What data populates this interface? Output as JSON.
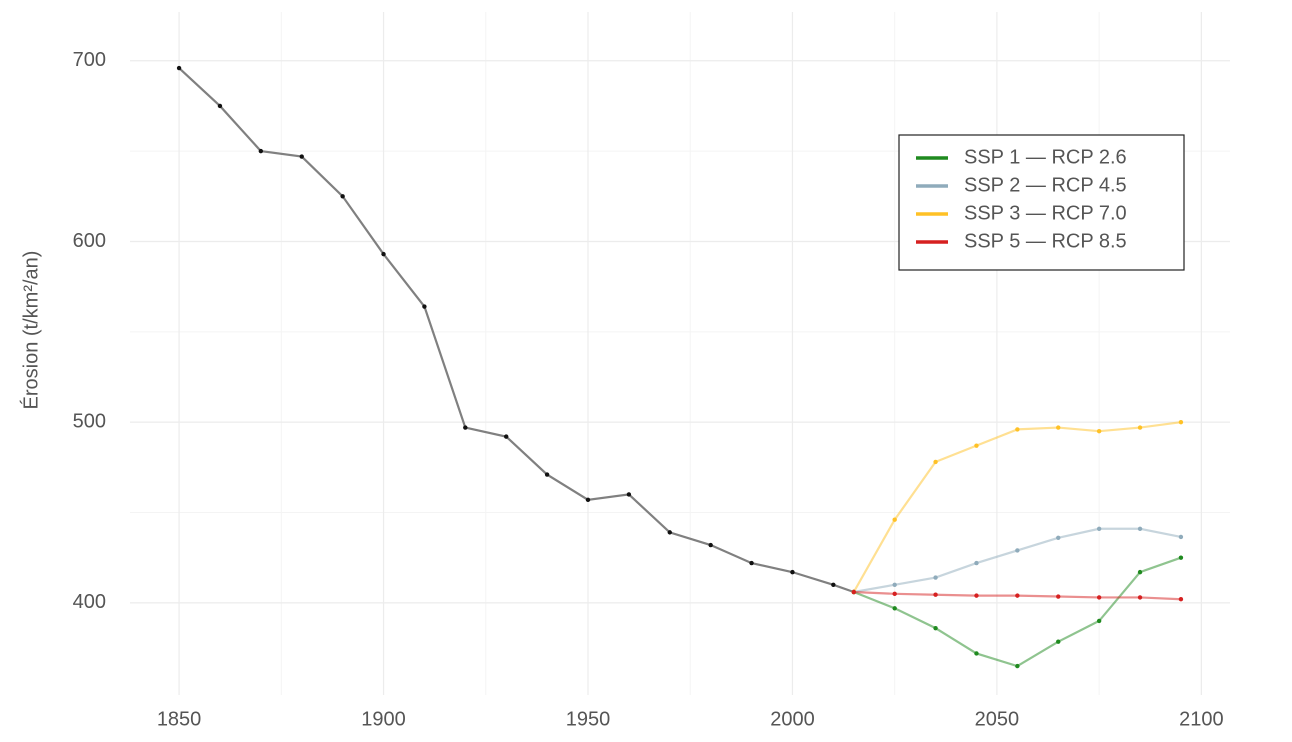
{
  "chart_data": {
    "type": "line",
    "ylabel": "Érosion (t/km²/an)",
    "x": [
      1850,
      1860,
      1870,
      1880,
      1890,
      1900,
      1910,
      1920,
      1930,
      1940,
      1950,
      1960,
      1970,
      1980,
      1990,
      2000,
      2010,
      2015,
      2025,
      2035,
      2045,
      2055,
      2065,
      2075,
      2085,
      2095
    ],
    "series": [
      {
        "color": "#808080",
        "marker_color": "#111111",
        "values": [
          696,
          675,
          650,
          647,
          625,
          593,
          564,
          497,
          492,
          471,
          457,
          460,
          439,
          432,
          422,
          417,
          410,
          406,
          null,
          null,
          null,
          null,
          null,
          null,
          null,
          null
        ]
      },
      {
        "name": "SSP 1 — RCP 2.6",
        "color": "#1f8a1f",
        "values": [
          null,
          null,
          null,
          null,
          null,
          null,
          null,
          null,
          null,
          null,
          null,
          null,
          null,
          null,
          null,
          null,
          null,
          406,
          397,
          386,
          372,
          365,
          378.5,
          390,
          417,
          425
        ]
      },
      {
        "name": "SSP 2 — RCP 4.5",
        "color": "#8fabbb",
        "values": [
          null,
          null,
          null,
          null,
          null,
          null,
          null,
          null,
          null,
          null,
          null,
          null,
          null,
          null,
          null,
          null,
          null,
          406,
          410,
          414,
          422,
          429,
          436,
          441,
          441,
          436.5
        ]
      },
      {
        "name": "SSP 3 — RCP 7.0",
        "color": "#ffc125",
        "values": [
          null,
          null,
          null,
          null,
          null,
          null,
          null,
          null,
          null,
          null,
          null,
          null,
          null,
          null,
          null,
          null,
          null,
          406,
          446,
          478,
          487,
          496,
          497,
          495,
          497,
          500
        ]
      },
      {
        "name": "SSP 5 — RCP 8.5",
        "color": "#d62020",
        "values": [
          null,
          null,
          null,
          null,
          null,
          null,
          null,
          null,
          null,
          null,
          null,
          null,
          null,
          null,
          null,
          null,
          null,
          406,
          405,
          404.5,
          404,
          404,
          403.5,
          403,
          403,
          402
        ]
      }
    ],
    "line_alpha": 0.5,
    "xlim": [
      1838,
      2107
    ],
    "ylim": [
      349,
      727
    ],
    "xticks": [
      1850,
      1900,
      1950,
      2000,
      2050,
      2100
    ],
    "yticks": [
      400,
      500,
      600,
      700
    ],
    "xminorticks": [
      1875,
      1925,
      1975,
      2025,
      2075
    ],
    "yminorticks": [
      450,
      550,
      650
    ],
    "grid": true,
    "legend": "upper right"
  }
}
